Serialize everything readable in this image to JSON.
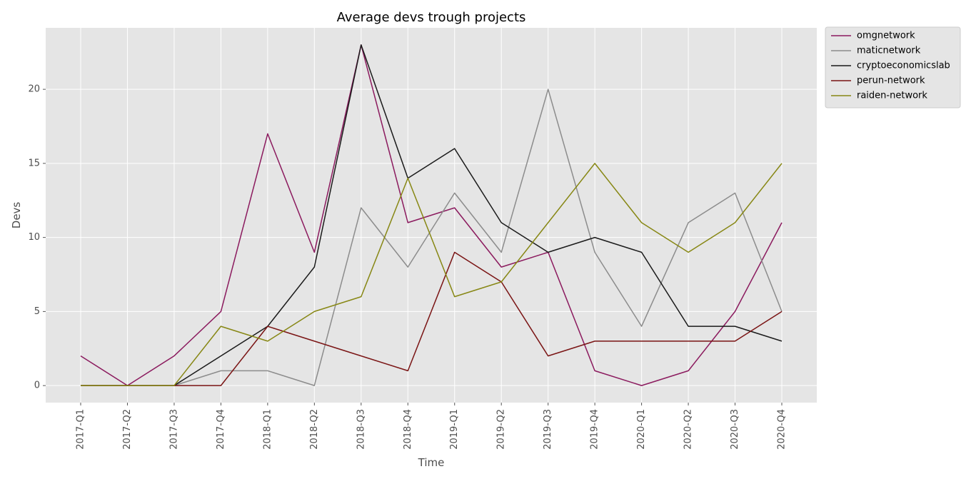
{
  "chart_data": {
    "type": "line",
    "title": "Average devs trough projects",
    "xlabel": "Time",
    "ylabel": "Devs",
    "categories": [
      "2017-Q1",
      "2017-Q2",
      "2017-Q3",
      "2017-Q4",
      "2018-Q1",
      "2018-Q2",
      "2018-Q3",
      "2018-Q4",
      "2019-Q1",
      "2019-Q2",
      "2019-Q3",
      "2019-Q4",
      "2020-Q1",
      "2020-Q2",
      "2020-Q3",
      "2020-Q4"
    ],
    "ylim": [
      -1.15,
      24.15
    ],
    "yticks": [
      0,
      5,
      10,
      15,
      20
    ],
    "grid": true,
    "legend_position": "outside top-right",
    "series": [
      {
        "name": "omgnetwork",
        "color": "#8b1a5e",
        "values": [
          2,
          0,
          2,
          5,
          17,
          9,
          23,
          11,
          12,
          8,
          9,
          1,
          0,
          1,
          5,
          11
        ]
      },
      {
        "name": "maticnetwork",
        "color": "#8c8c8c",
        "values": [
          0,
          0,
          0,
          1,
          1,
          0,
          12,
          8,
          13,
          9,
          20,
          9,
          4,
          11,
          13,
          5
        ]
      },
      {
        "name": "cryptoeconomicslab",
        "color": "#1a1a1a",
        "values": [
          0,
          0,
          0,
          2,
          4,
          8,
          23,
          14,
          16,
          11,
          9,
          10,
          9,
          4,
          4,
          3
        ]
      },
      {
        "name": "perun-network",
        "color": "#7a1414",
        "values": [
          0,
          0,
          0,
          0,
          4,
          3,
          2,
          1,
          9,
          7,
          2,
          3,
          3,
          3,
          3,
          5
        ]
      },
      {
        "name": "raiden-network",
        "color": "#878714",
        "values": [
          0,
          0,
          0,
          4,
          3,
          5,
          6,
          14,
          6,
          7,
          11,
          15,
          11,
          9,
          11,
          15
        ]
      }
    ]
  },
  "style": {
    "panel_background": "#e5e5e5",
    "grid_color": "#ffffff"
  }
}
